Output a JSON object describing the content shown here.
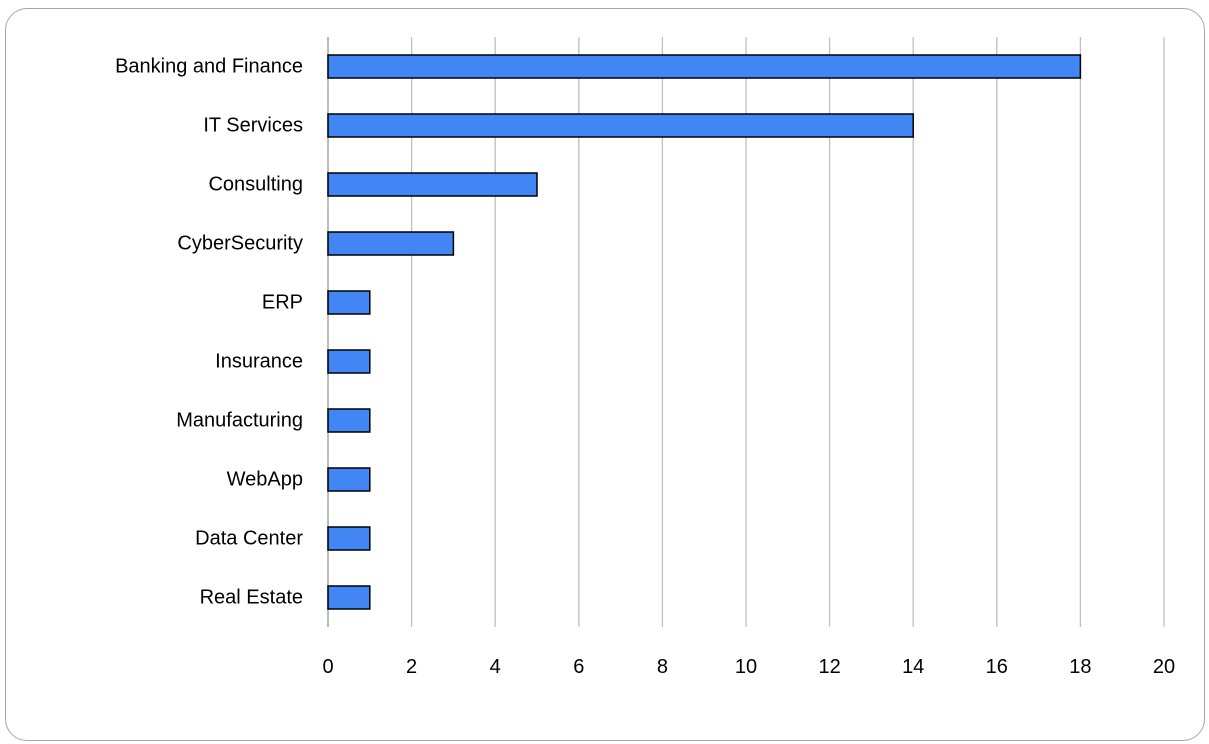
{
  "chart_data": {
    "type": "bar",
    "orientation": "horizontal",
    "categories": [
      "Banking and Finance",
      "IT Services",
      "Consulting",
      "CyberSecurity",
      "ERP",
      "Insurance",
      "Manufacturing",
      "WebApp",
      "Data Center",
      "Real Estate"
    ],
    "values": [
      18,
      14,
      5,
      3,
      1,
      1,
      1,
      1,
      1,
      1
    ],
    "title": "",
    "xlabel": "",
    "ylabel": "",
    "xlim": [
      0,
      20
    ],
    "x_ticks": [
      0,
      2,
      4,
      6,
      8,
      10,
      12,
      14,
      16,
      18,
      20
    ],
    "grid": "vertical",
    "legend": "none",
    "colors": {
      "bar_fill": "#4285f4",
      "bar_stroke": "#000000",
      "grid": "#bfbfbf",
      "axis": "#a6a6a6",
      "frame": "#a6a6a6"
    }
  }
}
